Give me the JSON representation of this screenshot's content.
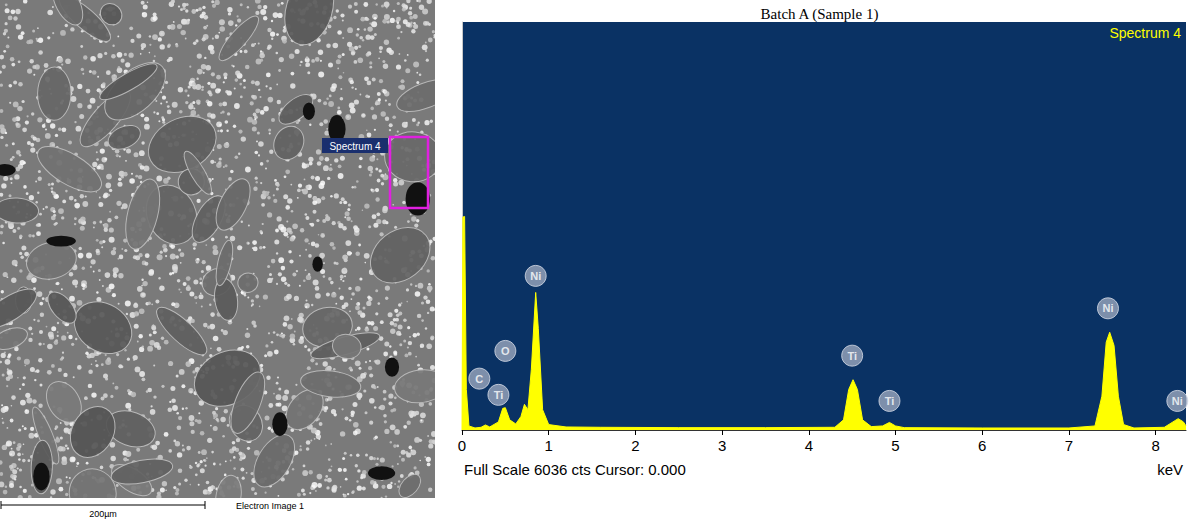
{
  "chart_data": {
    "type": "line",
    "title": "Batch A (Sample 1)",
    "subtitle": "Spectrum 4",
    "xlabel": "keV",
    "footer": "Full Scale 6036 cts Cursor: 0.000",
    "color": "#ffff00",
    "x": [
      0,
      0.01,
      0.03,
      0.05,
      0.08,
      0.15,
      0.22,
      0.27,
      0.32,
      0.42,
      0.47,
      0.5,
      0.55,
      0.62,
      0.68,
      0.72,
      0.76,
      0.8,
      0.85,
      0.88,
      0.93,
      1.0,
      1.2,
      1.6,
      2.5,
      3.5,
      4.3,
      4.4,
      4.46,
      4.51,
      4.56,
      4.62,
      4.72,
      4.85,
      4.93,
      5.0,
      5.1,
      6.0,
      7.0,
      7.3,
      7.38,
      7.43,
      7.47,
      7.52,
      7.57,
      7.63,
      7.75,
      8.1,
      8.2,
      8.26,
      8.32,
      8.35
    ],
    "values": [
      0,
      3150,
      3158,
      600,
      60,
      30,
      40,
      75,
      45,
      120,
      320,
      330,
      150,
      90,
      200,
      380,
      300,
      900,
      2035,
      1500,
      300,
      80,
      45,
      40,
      35,
      35,
      40,
      150,
      600,
      744,
      600,
      150,
      50,
      60,
      112,
      60,
      35,
      30,
      30,
      60,
      500,
      1300,
      1446,
      1250,
      500,
      80,
      30,
      40,
      120,
      168,
      120,
      60
    ],
    "xlim": [
      0,
      8.35
    ],
    "xticks": [
      0,
      1,
      2,
      3,
      4,
      5,
      6,
      7,
      8
    ],
    "ylim": [
      0,
      6036
    ],
    "yticks": [],
    "tick_labels": "x",
    "grid": false,
    "annotations": [
      {
        "text": "C",
        "x": 0.2,
        "y": 760
      },
      {
        "text": "O",
        "x": 0.5,
        "y": 1170
      },
      {
        "text": "Ti",
        "x": 0.42,
        "y": 520
      },
      {
        "text": "Ni",
        "x": 0.85,
        "y": 2280
      },
      {
        "text": "Ti",
        "x": 4.5,
        "y": 1100
      },
      {
        "text": "Ti",
        "x": 4.93,
        "y": 430
      },
      {
        "text": "Ni",
        "x": 7.45,
        "y": 1800
      },
      {
        "text": "Ni",
        "x": 8.25,
        "y": 430
      }
    ]
  },
  "image": {
    "spectrum_label": "Spectrum 4",
    "scale_bar": "200µm",
    "caption": "Electron Image 1"
  }
}
